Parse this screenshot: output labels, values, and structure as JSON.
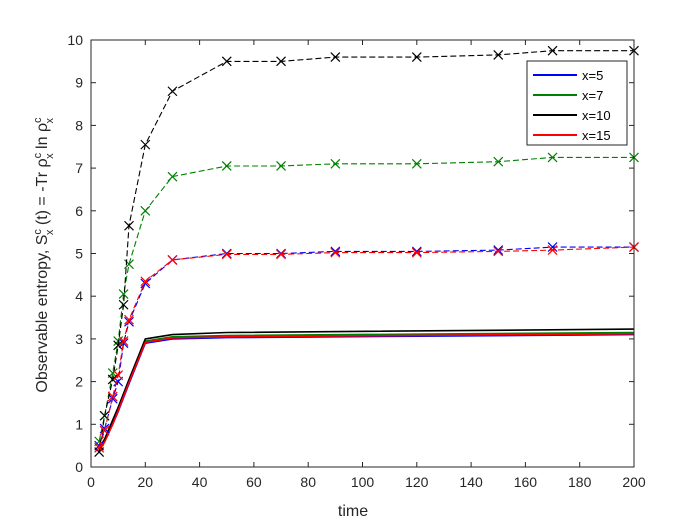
{
  "chart_data": {
    "type": "line",
    "xlabel": "time",
    "ylabel_parts": {
      "prefix": "Observable entropy, S",
      "s_sup": "c",
      "s_sub": "x",
      "mid": " (t) = -Tr ",
      "rho1": "ρ",
      "rho1_sup": "c",
      "rho1_sub": "x",
      "ln": " ln ",
      "rho2": "ρ",
      "rho2_sup": "c",
      "rho2_sub": "x"
    },
    "xlim": [
      0,
      200
    ],
    "ylim": [
      0,
      10
    ],
    "xticks": [
      0,
      20,
      40,
      60,
      80,
      100,
      120,
      140,
      160,
      180,
      200
    ],
    "yticks": [
      0,
      1,
      2,
      3,
      4,
      5,
      6,
      7,
      8,
      9,
      10
    ],
    "grid": false,
    "legend_placement": "top-right",
    "legend": [
      {
        "label": "x=5",
        "color": "#0000ff"
      },
      {
        "label": "x=7",
        "color": "#008000"
      },
      {
        "label": "x=10",
        "color": "#000000"
      },
      {
        "label": "x=15",
        "color": "#ff0000"
      }
    ],
    "series": [
      {
        "color": "#0000ff",
        "style": "solid",
        "x": [
          3,
          5,
          8,
          10,
          14,
          20,
          30,
          50,
          200
        ],
        "y": [
          0.4,
          0.6,
          1.0,
          1.3,
          1.95,
          2.9,
          3.0,
          3.03,
          3.1
        ]
      },
      {
        "color": "#008000",
        "style": "solid",
        "x": [
          3,
          5,
          8,
          10,
          14,
          20,
          30,
          50,
          200
        ],
        "y": [
          0.42,
          0.62,
          1.05,
          1.35,
          2.0,
          2.95,
          3.05,
          3.08,
          3.15
        ]
      },
      {
        "color": "#000000",
        "style": "solid",
        "x": [
          3,
          5,
          8,
          10,
          14,
          20,
          30,
          50,
          200
        ],
        "y": [
          0.45,
          0.65,
          1.1,
          1.4,
          2.05,
          3.0,
          3.1,
          3.15,
          3.23
        ]
      },
      {
        "color": "#ff0000",
        "style": "solid",
        "x": [
          3,
          5,
          8,
          10,
          14,
          20,
          30,
          50,
          200
        ],
        "y": [
          0.38,
          0.58,
          1.0,
          1.32,
          1.98,
          2.92,
          3.02,
          3.05,
          3.12
        ]
      },
      {
        "color": "#0000ff",
        "style": "dashed",
        "x": [
          3,
          5,
          8,
          10,
          12,
          14,
          20,
          30,
          50,
          70,
          90,
          120,
          150,
          170,
          200
        ],
        "y": [
          0.5,
          0.9,
          1.6,
          2.0,
          2.9,
          3.4,
          4.3,
          4.85,
          5.0,
          5.0,
          5.05,
          5.05,
          5.08,
          5.15,
          5.15
        ]
      },
      {
        "color": "#008000",
        "style": "dashed",
        "x": [
          3,
          5,
          8,
          10,
          12,
          14,
          20,
          30,
          50,
          70,
          90,
          120,
          150,
          170,
          200
        ],
        "y": [
          0.6,
          1.2,
          2.2,
          2.95,
          4.05,
          4.75,
          6.0,
          6.8,
          7.05,
          7.05,
          7.1,
          7.1,
          7.15,
          7.25,
          7.25
        ]
      },
      {
        "color": "#000000",
        "style": "dashed",
        "x": [
          3,
          5,
          8,
          10,
          12,
          14,
          20,
          30,
          50,
          70,
          90,
          120,
          150,
          170,
          200
        ],
        "y": [
          0.35,
          1.2,
          2.05,
          2.85,
          3.8,
          5.65,
          7.55,
          8.8,
          9.5,
          9.5,
          9.6,
          9.6,
          9.65,
          9.75,
          9.75
        ]
      },
      {
        "color": "#ff0000",
        "style": "dashed",
        "x": [
          3,
          5,
          8,
          10,
          12,
          14,
          20,
          30,
          50,
          70,
          90,
          120,
          150,
          170,
          200
        ],
        "y": [
          0.45,
          0.85,
          1.65,
          2.15,
          2.95,
          3.45,
          4.35,
          4.85,
          4.98,
          4.98,
          5.02,
          5.02,
          5.05,
          5.08,
          5.15
        ]
      }
    ]
  }
}
